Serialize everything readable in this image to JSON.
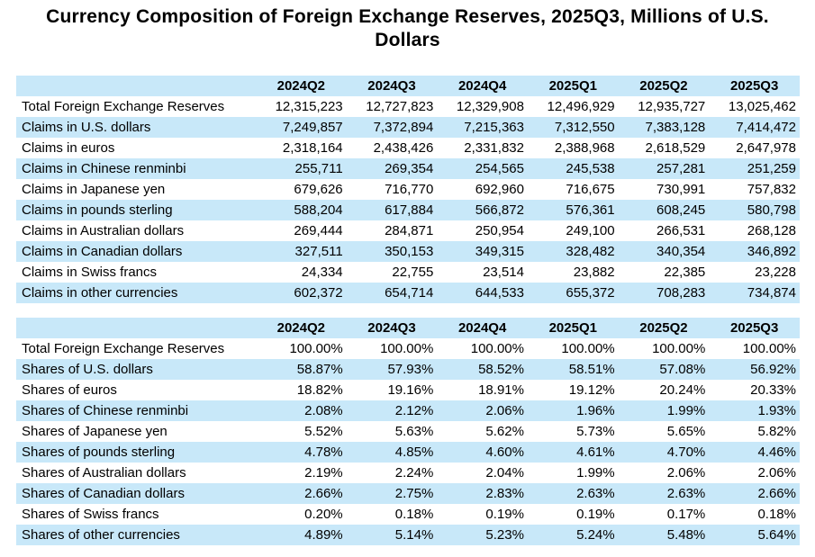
{
  "title": {
    "lines": [
      "Currency Composition of Foreign Exchange Reserves, 2025Q3, Millions of U.S.",
      "Dollars"
    ]
  },
  "colors": {
    "band_blue": "#c8e8f9",
    "background": "#ffffff",
    "text": "#000000"
  },
  "quarters": [
    "2024Q2",
    "2024Q3",
    "2024Q4",
    "2025Q1",
    "2025Q2",
    "2025Q3"
  ],
  "chart_data": [
    {
      "type": "table",
      "name": "reserves-values-millions-usd",
      "columns": [
        "",
        "2024Q2",
        "2024Q3",
        "2024Q4",
        "2025Q1",
        "2025Q2",
        "2025Q3"
      ],
      "rows": [
        [
          "Total Foreign Exchange Reserves",
          "12,315,223",
          "12,727,823",
          "12,329,908",
          "12,496,929",
          "12,935,727",
          "13,025,462"
        ],
        [
          "Claims in U.S. dollars",
          "7,249,857",
          "7,372,894",
          "7,215,363",
          "7,312,550",
          "7,383,128",
          "7,414,472"
        ],
        [
          "Claims in euros",
          "2,318,164",
          "2,438,426",
          "2,331,832",
          "2,388,968",
          "2,618,529",
          "2,647,978"
        ],
        [
          "Claims in Chinese renminbi",
          "255,711",
          "269,354",
          "254,565",
          "245,538",
          "257,281",
          "251,259"
        ],
        [
          "Claims in Japanese yen",
          "679,626",
          "716,770",
          "692,960",
          "716,675",
          "730,991",
          "757,832"
        ],
        [
          "Claims in pounds sterling",
          "588,204",
          "617,884",
          "566,872",
          "576,361",
          "608,245",
          "580,798"
        ],
        [
          "Claims in Australian dollars",
          "269,444",
          "284,871",
          "250,954",
          "249,100",
          "266,531",
          "268,128"
        ],
        [
          "Claims in Canadian dollars",
          "327,511",
          "350,153",
          "349,315",
          "328,482",
          "340,354",
          "346,892"
        ],
        [
          "Claims in Swiss francs",
          "24,334",
          "22,755",
          "23,514",
          "23,882",
          "22,385",
          "23,228"
        ],
        [
          "Claims in other currencies",
          "602,372",
          "654,714",
          "644,533",
          "655,372",
          "708,283",
          "734,874"
        ]
      ]
    },
    {
      "type": "table",
      "name": "reserves-shares-percent",
      "columns": [
        "",
        "2024Q2",
        "2024Q3",
        "2024Q4",
        "2025Q1",
        "2025Q2",
        "2025Q3"
      ],
      "rows": [
        [
          "Total Foreign Exchange Reserves",
          "100.00%",
          "100.00%",
          "100.00%",
          "100.00%",
          "100.00%",
          "100.00%"
        ],
        [
          "Shares of U.S. dollars",
          "58.87%",
          "57.93%",
          "58.52%",
          "58.51%",
          "57.08%",
          "56.92%"
        ],
        [
          "Shares of euros",
          "18.82%",
          "19.16%",
          "18.91%",
          "19.12%",
          "20.24%",
          "20.33%"
        ],
        [
          "Shares of Chinese renminbi",
          "2.08%",
          "2.12%",
          "2.06%",
          "1.96%",
          "1.99%",
          "1.93%"
        ],
        [
          "Shares of Japanese yen",
          "5.52%",
          "5.63%",
          "5.62%",
          "5.73%",
          "5.65%",
          "5.82%"
        ],
        [
          "Shares of pounds sterling",
          "4.78%",
          "4.85%",
          "4.60%",
          "4.61%",
          "4.70%",
          "4.46%"
        ],
        [
          "Shares of Australian dollars",
          "2.19%",
          "2.24%",
          "2.04%",
          "1.99%",
          "2.06%",
          "2.06%"
        ],
        [
          "Shares of Canadian dollars",
          "2.66%",
          "2.75%",
          "2.83%",
          "2.63%",
          "2.63%",
          "2.66%"
        ],
        [
          "Shares of Swiss francs",
          "0.20%",
          "0.18%",
          "0.19%",
          "0.19%",
          "0.17%",
          "0.18%"
        ],
        [
          "Shares of other currencies",
          "4.89%",
          "5.14%",
          "5.23%",
          "5.24%",
          "5.48%",
          "5.64%"
        ]
      ]
    }
  ]
}
